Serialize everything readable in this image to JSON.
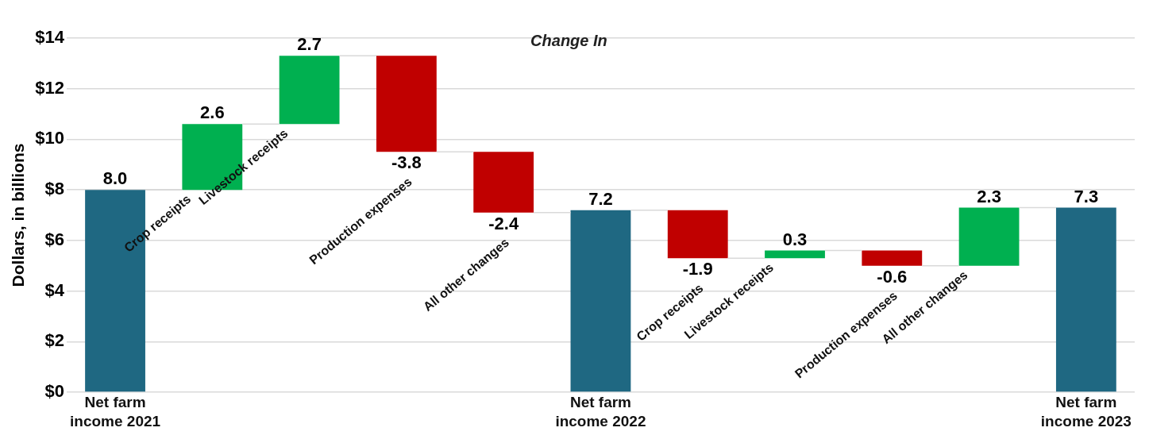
{
  "chart_data": {
    "type": "bar",
    "annotations": [
      "Change In"
    ],
    "ylabel": "Dollars, in billions",
    "categories": [
      "Net farm income 2021",
      "Crop receipts",
      "Livestock receipts",
      "Production expenses",
      "All other changes",
      "Net farm income 2022",
      "Crop receipts",
      "Livestock receipts",
      "Production expenses",
      "All other changes",
      "Net farm income 2023"
    ],
    "values": [
      8.0,
      2.6,
      2.7,
      -3.8,
      -2.4,
      7.2,
      -1.9,
      0.3,
      -0.6,
      2.3,
      7.3
    ],
    "base": [
      0,
      8.0,
      10.6,
      13.3,
      9.5,
      0,
      7.2,
      5.3,
      5.6,
      5.0,
      0
    ],
    "colors": [
      "#1f6882",
      "#00b050",
      "#00b050",
      "#c00000",
      "#c00000",
      "#1f6882",
      "#c00000",
      "#00b050",
      "#c00000",
      "#00b050",
      "#1f6882"
    ],
    "value_labels": [
      "8.0",
      "2.6",
      "2.7",
      "-3.8",
      "-2.4",
      "7.2",
      "-1.9",
      "0.3",
      "-0.6",
      "2.3",
      "7.3"
    ],
    "ylim": [
      0,
      14
    ],
    "yticks": [
      {
        "value": 0,
        "label": "$0"
      },
      {
        "value": 2,
        "label": "$2"
      },
      {
        "value": 4,
        "label": "$4"
      },
      {
        "value": 6,
        "label": "$6"
      },
      {
        "value": 8,
        "label": "$8"
      },
      {
        "value": 10,
        "label": "$10"
      },
      {
        "value": 12,
        "label": "$12"
      },
      {
        "value": 14,
        "label": "$14"
      }
    ],
    "grid": "y"
  }
}
